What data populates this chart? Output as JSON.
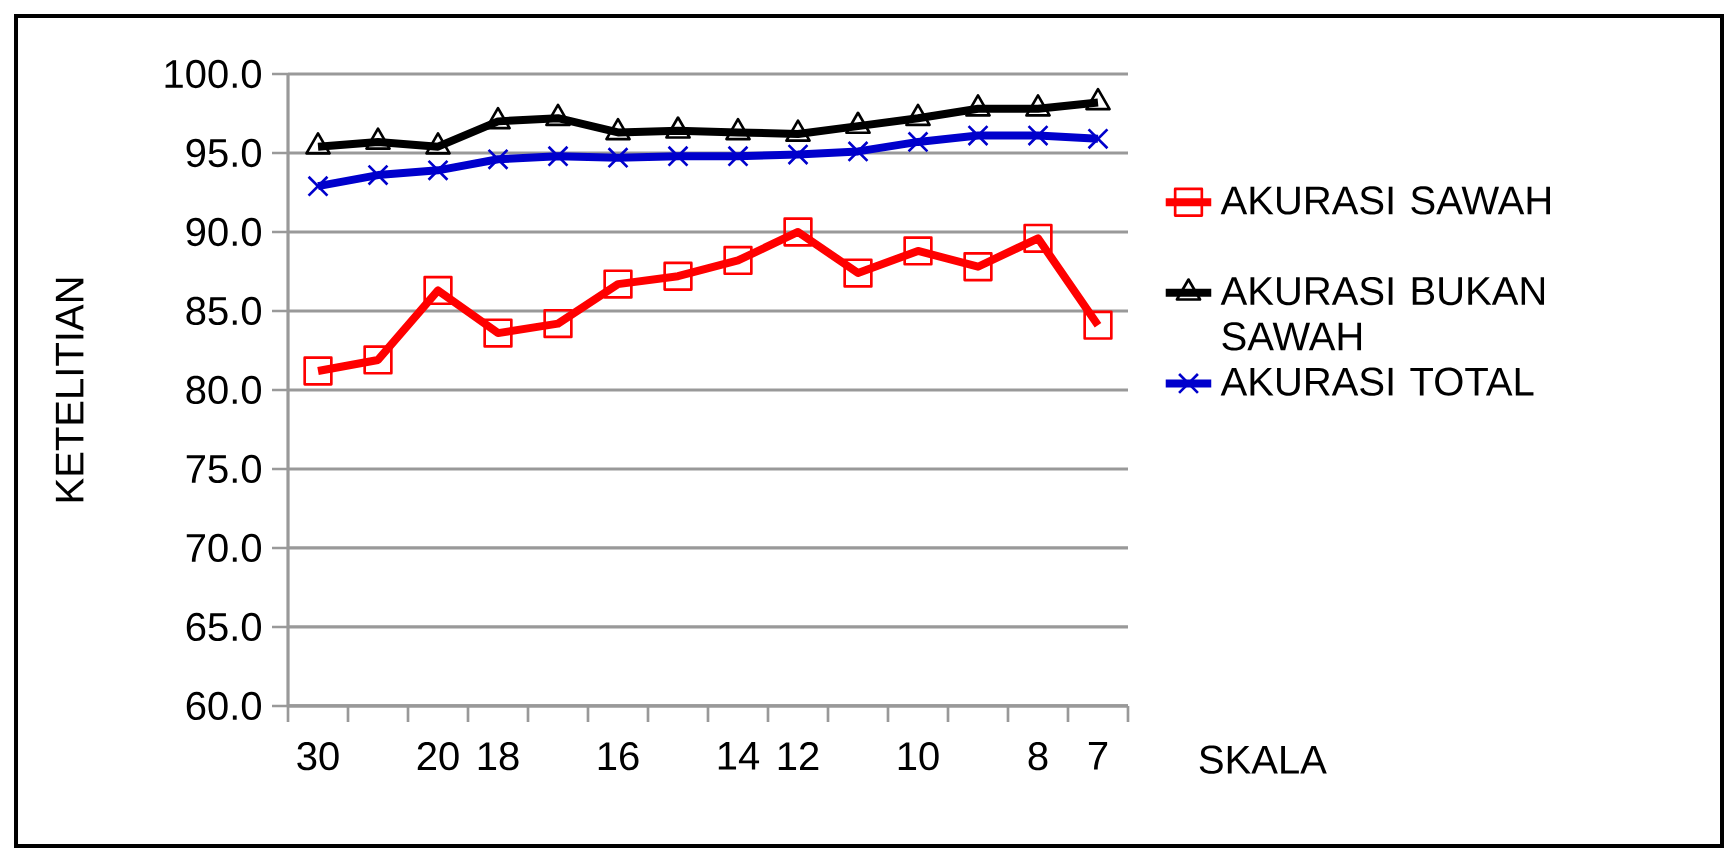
{
  "chart_data": {
    "type": "line",
    "xlabel": "SKALA",
    "ylabel": "KETELITIAN",
    "categories": [
      "30",
      null,
      "20",
      "18",
      null,
      "16",
      null,
      "14",
      "12",
      null,
      "10",
      null,
      "8",
      "7"
    ],
    "ylim": [
      60,
      100
    ],
    "yticks": [
      {
        "value": 60,
        "label": "60.0"
      },
      {
        "value": 65,
        "label": "65.0"
      },
      {
        "value": 70,
        "label": "70.0"
      },
      {
        "value": 75,
        "label": "75.0"
      },
      {
        "value": 80,
        "label": "80.0"
      },
      {
        "value": 85,
        "label": "85.0"
      },
      {
        "value": 90,
        "label": "90.0"
      },
      {
        "value": 95,
        "label": "95.0"
      },
      {
        "value": 100,
        "label": "100.0"
      }
    ],
    "grid": "y",
    "legend": "right",
    "series": [
      {
        "name": "AKURASI SAWAH",
        "color": "#ff0000",
        "marker": "square",
        "values": [
          81.2,
          81.9,
          86.3,
          83.6,
          84.2,
          86.7,
          87.2,
          88.2,
          90.0,
          87.4,
          88.8,
          87.8,
          89.6,
          84.1
        ]
      },
      {
        "name": "AKURASI BUKAN SAWAH",
        "color": "#000000",
        "marker": "triangle",
        "values": [
          95.4,
          95.7,
          95.4,
          97.0,
          97.2,
          96.3,
          96.4,
          96.3,
          96.2,
          96.7,
          97.2,
          97.8,
          97.8,
          98.2
        ]
      },
      {
        "name": "AKURASI TOTAL",
        "color": "#0000cc",
        "marker": "cross",
        "values": [
          92.9,
          93.6,
          93.9,
          94.6,
          94.8,
          94.7,
          94.8,
          94.8,
          94.9,
          95.1,
          95.7,
          96.1,
          96.1,
          95.9
        ]
      }
    ]
  }
}
